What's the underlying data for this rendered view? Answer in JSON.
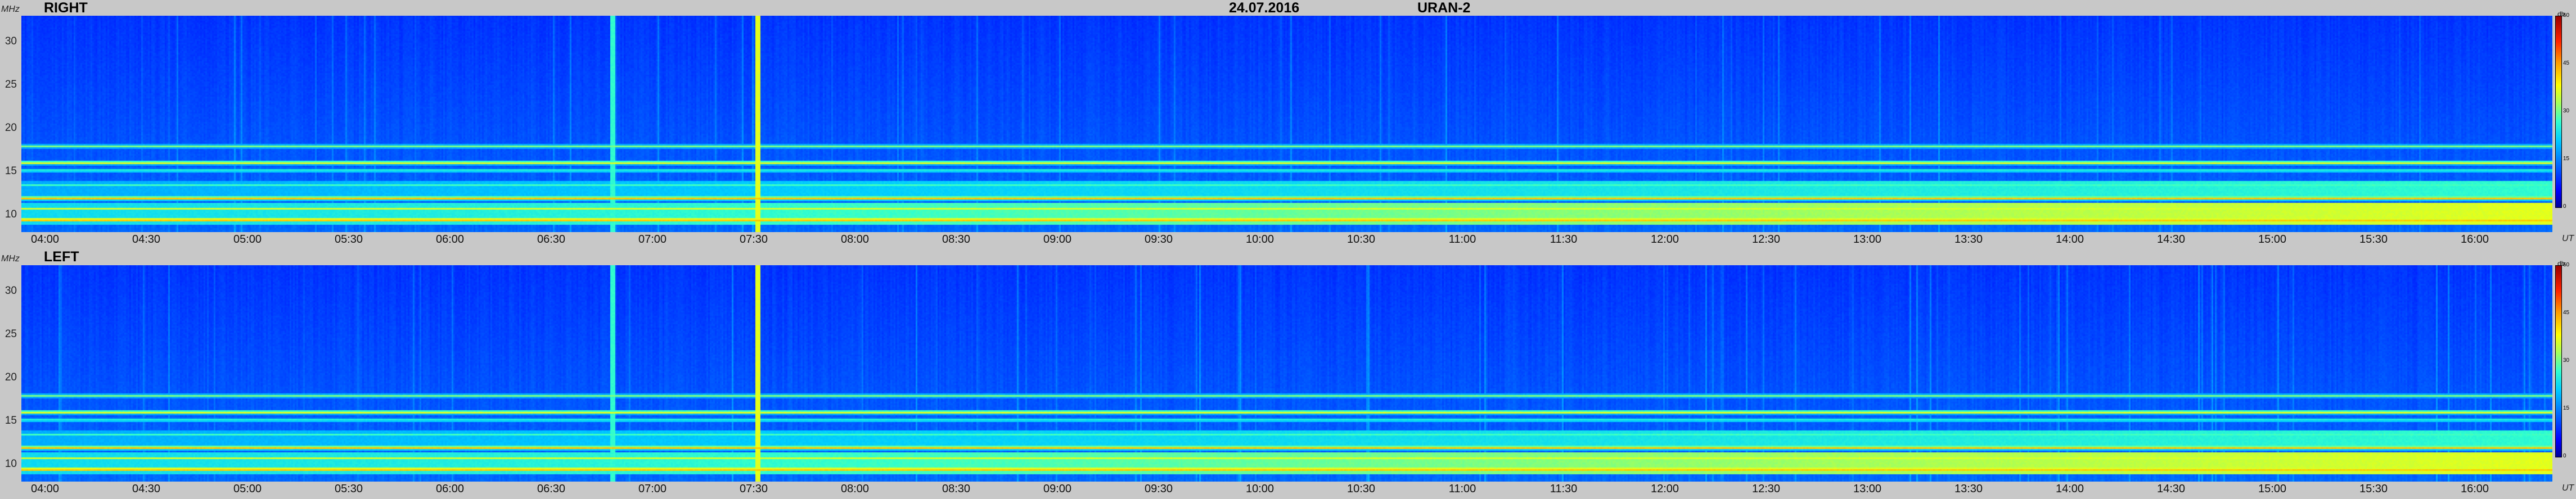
{
  "header": {
    "date": "24.07.2016",
    "instrument": "URAN-2"
  },
  "chart_data": {
    "type": "heatmap",
    "title": "24.07.2016    URAN-2",
    "xlabel": "UT",
    "ylabel": "MHz",
    "colorbar_unit": "db",
    "colorbar_ticks": [
      "60",
      "45",
      "30",
      "15",
      "0"
    ],
    "clim": [
      0,
      60
    ],
    "ylim": [
      8,
      33
    ],
    "y_ticks": [
      "30",
      "25",
      "20",
      "15",
      "10"
    ],
    "x_ticks": [
      "04:00",
      "04:30",
      "05:00",
      "05:30",
      "06:00",
      "06:30",
      "07:00",
      "07:30",
      "08:00",
      "08:30",
      "09:00",
      "09:30",
      "10:00",
      "10:30",
      "11:00",
      "11:30",
      "12:00",
      "12:30",
      "13:00",
      "13:30",
      "14:00",
      "14:30",
      "15:00",
      "15:30",
      "16:00"
    ],
    "panels": [
      {
        "name": "RIGHT"
      },
      {
        "name": "LEFT"
      }
    ],
    "features": {
      "background_db": 8,
      "bands_mhz": [
        {
          "freq": 18.0,
          "db": 30
        },
        {
          "freq": 16.1,
          "db": 40
        },
        {
          "freq": 15.2,
          "db": 28
        },
        {
          "freq": 13.5,
          "db": 28
        },
        {
          "freq": 12.0,
          "db": 46
        },
        {
          "freq": 10.8,
          "db": 36
        },
        {
          "freq": 9.5,
          "db": 50
        }
      ],
      "vertical_lines_ut": [
        {
          "time": "06:48",
          "db": 26
        },
        {
          "time": "07:31",
          "db": 36
        }
      ]
    }
  }
}
